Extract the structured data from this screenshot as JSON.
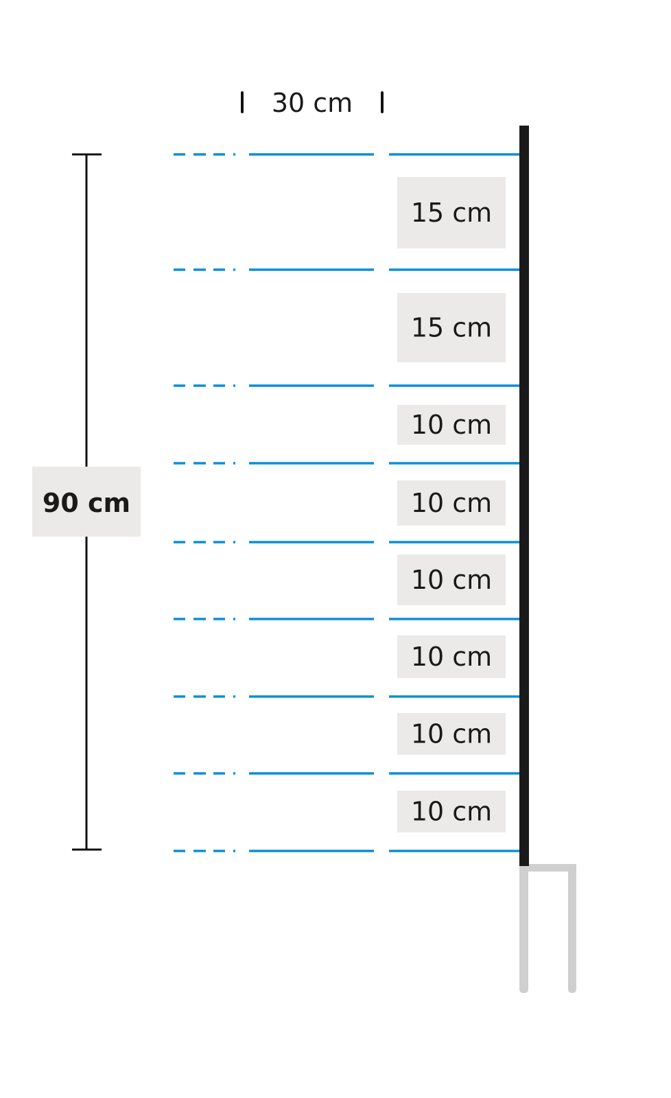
{
  "colors": {
    "wire": "#0a8fd8",
    "post": "#1a1a1a",
    "post_leg": "#cfcfcf",
    "label_box": "#ebeae8",
    "dimension_line": "#111111"
  },
  "total_height": {
    "label": "90 cm",
    "value_cm": 90
  },
  "wire_spacing_horizontal": {
    "label": "30 cm",
    "value_cm": 30
  },
  "wire_gaps": [
    {
      "label": "15 cm",
      "value_cm": 15
    },
    {
      "label": "15 cm",
      "value_cm": 15
    },
    {
      "label": "10 cm",
      "value_cm": 10
    },
    {
      "label": "10 cm",
      "value_cm": 10
    },
    {
      "label": "10 cm",
      "value_cm": 10
    },
    {
      "label": "10 cm",
      "value_cm": 10
    },
    {
      "label": "10 cm",
      "value_cm": 10
    },
    {
      "label": "10 cm",
      "value_cm": 10
    }
  ]
}
